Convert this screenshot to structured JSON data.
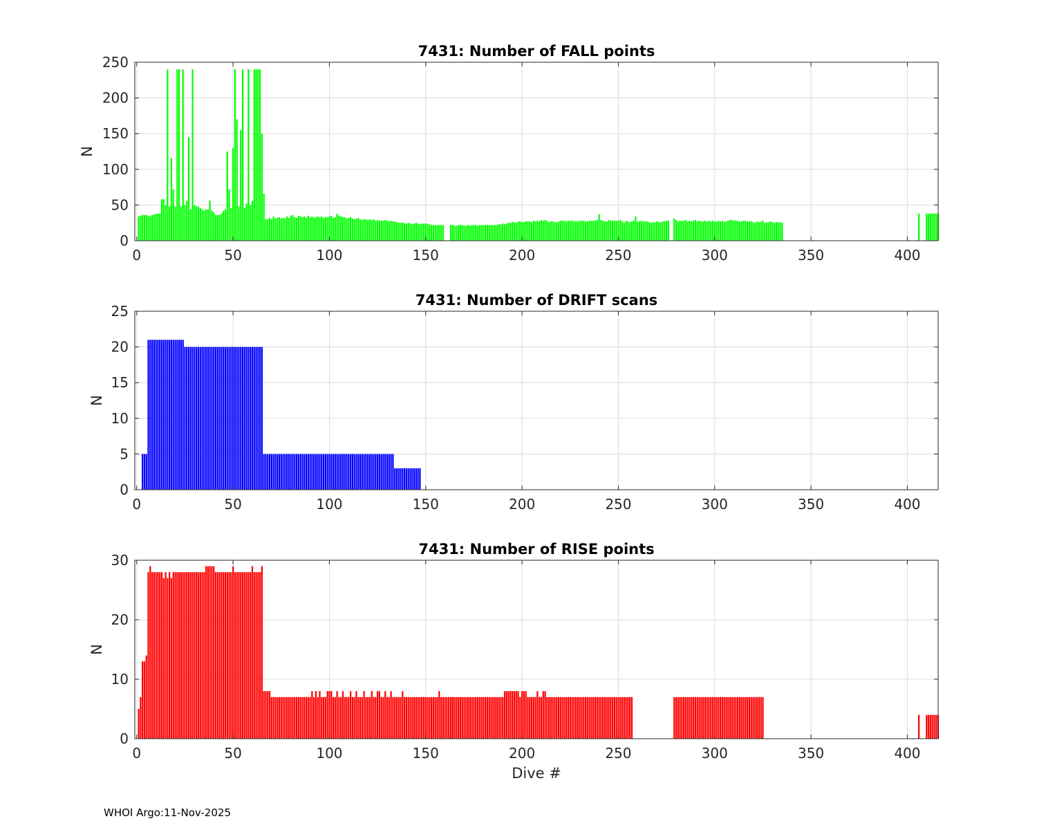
{
  "footer": "WHOI Argo:11-Nov-2025",
  "chart_data": [
    {
      "type": "bar",
      "title": "7431: Number of FALL points",
      "xlabel": "",
      "ylabel": "N",
      "xlim": [
        -1,
        416
      ],
      "ylim": [
        0,
        250
      ],
      "xticks": [
        0,
        50,
        100,
        150,
        200,
        250,
        300,
        350,
        400
      ],
      "yticks": [
        0,
        50,
        100,
        150,
        200,
        250
      ],
      "color": "#00ff00",
      "grid": true,
      "segments": [
        {
          "start": 1,
          "values": [
            34,
            35,
            36,
            36,
            36,
            35,
            34,
            36,
            37,
            38,
            38,
            38,
            58,
            58,
            50,
            240,
            48,
            116,
            72,
            48,
            240,
            240,
            48,
            240,
            50,
            56,
            145,
            44,
            240,
            50,
            48,
            48,
            46,
            44,
            42,
            44,
            44,
            56,
            42,
            40,
            36,
            36,
            36,
            38,
            42,
            44,
            125,
            72,
            46,
            130,
            240,
            170,
            48,
            155,
            240,
            46,
            52,
            240,
            50,
            56,
            240,
            240,
            240,
            240,
            150,
            66
          ]
        },
        {
          "start": 67,
          "values": [
            30,
            30,
            32,
            30,
            34,
            31,
            32,
            33,
            31,
            32,
            31,
            34,
            32,
            35,
            36,
            33,
            32,
            35,
            34,
            33,
            34,
            32,
            35,
            33,
            34,
            32,
            33,
            34,
            33,
            34,
            32,
            33,
            33,
            34,
            35,
            32,
            33,
            38,
            35,
            34,
            33,
            33,
            31,
            32,
            33,
            31,
            30,
            31,
            32,
            30,
            29,
            30,
            30,
            29,
            30,
            29,
            30,
            28,
            29,
            28,
            28,
            28,
            29,
            28,
            27,
            28,
            27,
            27,
            26,
            25,
            25,
            26,
            24,
            24,
            25,
            24,
            23,
            24,
            25,
            24,
            23,
            24,
            24,
            24,
            24,
            23,
            22,
            22,
            22,
            22,
            22,
            22,
            22
          ]
        },
        {
          "start": 163,
          "values": [
            22,
            22,
            21,
            21,
            22,
            22,
            22,
            21,
            21,
            22,
            21,
            22,
            22,
            22,
            21,
            22,
            22,
            22,
            22,
            22,
            22,
            22,
            22,
            22,
            22,
            23,
            23,
            24,
            23,
            24,
            25,
            25,
            26,
            26,
            25,
            27,
            27,
            26,
            26,
            27,
            27,
            27,
            26,
            28,
            27,
            28,
            27,
            29,
            28,
            29,
            28,
            26,
            27,
            27,
            26,
            26,
            27,
            28,
            28,
            28,
            27,
            28,
            28,
            28,
            27,
            27,
            27,
            28,
            28,
            28,
            27,
            27,
            28,
            28,
            28,
            28,
            29,
            37,
            29,
            28,
            27,
            27,
            29,
            28,
            28,
            28,
            28,
            28,
            29,
            27,
            25,
            28,
            27,
            26,
            27,
            28,
            34,
            27,
            27,
            28,
            27,
            27,
            27,
            26,
            25,
            26,
            26,
            27,
            26,
            26,
            27,
            27,
            28,
            28
          ]
        },
        {
          "start": 279,
          "values": [
            31,
            29,
            27,
            28,
            28,
            28,
            29,
            27,
            28,
            27,
            28,
            29,
            27,
            28,
            27,
            27,
            28,
            27,
            28,
            27,
            28,
            27,
            27,
            28,
            27,
            28,
            26,
            27,
            28,
            29,
            29,
            28,
            28,
            28,
            27,
            27,
            28,
            28,
            27,
            27,
            27,
            26,
            25,
            27,
            26,
            27,
            28,
            25,
            26,
            26,
            27,
            26,
            25,
            26,
            26,
            26,
            25
          ]
        },
        {
          "start": 406,
          "values": [
            38
          ]
        },
        {
          "start": 410,
          "values": [
            38,
            38,
            38,
            38,
            38,
            38,
            38
          ]
        }
      ]
    },
    {
      "type": "bar",
      "title": "7431: Number of DRIFT scans",
      "xlabel": "",
      "ylabel": "N",
      "xlim": [
        -1,
        416
      ],
      "ylim": [
        0,
        25
      ],
      "xticks": [
        0,
        50,
        100,
        150,
        200,
        250,
        300,
        350,
        400
      ],
      "yticks": [
        0,
        5,
        10,
        15,
        20,
        25
      ],
      "color": "#0000ff",
      "grid": true,
      "segments": [
        {
          "start": 3,
          "values": [
            5,
            5,
            5,
            21,
            21,
            21,
            21,
            21,
            21,
            21,
            21,
            21,
            21,
            21,
            21,
            21,
            21,
            21,
            21,
            21,
            21,
            21
          ]
        },
        {
          "start": 25,
          "values": [
            20,
            20,
            20,
            20,
            20,
            20,
            20,
            20,
            20,
            20,
            20,
            20,
            20,
            20,
            20,
            20,
            20,
            20,
            20,
            20,
            20,
            20,
            20,
            20,
            20,
            20,
            20,
            20,
            20,
            20,
            20,
            20,
            20,
            20,
            20,
            20,
            20,
            20,
            20,
            20,
            20
          ]
        },
        {
          "start": 66,
          "values": [
            5,
            5,
            5,
            5,
            5,
            5,
            5,
            5,
            5,
            5,
            5,
            5,
            5,
            5,
            5,
            5,
            5,
            5,
            5,
            5,
            5,
            5,
            5,
            5,
            5,
            5,
            5,
            5,
            5,
            5,
            5,
            5,
            5,
            5,
            5,
            5,
            5,
            5,
            5,
            5,
            5,
            5,
            5,
            5,
            5,
            5,
            5,
            5,
            5,
            5,
            5,
            5,
            5,
            5,
            5,
            5,
            5,
            5,
            5,
            5,
            5,
            5,
            5,
            5,
            5,
            5,
            5,
            5
          ]
        },
        {
          "start": 134,
          "values": [
            3,
            3,
            3,
            3,
            3,
            3,
            3,
            3,
            3,
            3,
            3,
            3,
            3,
            3
          ]
        }
      ]
    },
    {
      "type": "bar",
      "title": "7431: Number of RISE points",
      "xlabel": "Dive #",
      "ylabel": "N",
      "xlim": [
        -1,
        416
      ],
      "ylim": [
        0,
        30
      ],
      "xticks": [
        0,
        50,
        100,
        150,
        200,
        250,
        300,
        350,
        400
      ],
      "yticks": [
        0,
        10,
        20,
        30
      ],
      "color": "#ff0000",
      "grid": true,
      "segments": [
        {
          "start": 1,
          "values": [
            5,
            7,
            13,
            13,
            14,
            28,
            29,
            28,
            28,
            28,
            28,
            28,
            28,
            27,
            28,
            27,
            28,
            27,
            28,
            28,
            28,
            28,
            28,
            28,
            28,
            28,
            28,
            28,
            28,
            28,
            28,
            28,
            28,
            28,
            28,
            29,
            29,
            29,
            29,
            29,
            28,
            28,
            28,
            28,
            28,
            28,
            28,
            28,
            28,
            29,
            28,
            28,
            28,
            28,
            28,
            28,
            28,
            28,
            28,
            29,
            28,
            28,
            28,
            28,
            29
          ]
        },
        {
          "start": 66,
          "values": [
            8,
            8,
            8,
            8,
            7,
            7,
            7,
            7,
            7,
            7,
            7,
            7,
            7,
            7,
            7,
            7,
            7,
            7,
            7,
            7,
            7,
            7,
            7,
            7,
            7,
            8,
            7,
            8,
            7,
            8,
            7,
            7,
            7,
            8,
            8,
            8,
            7,
            7,
            8,
            7,
            7,
            8,
            7,
            7,
            7,
            8,
            7,
            7,
            8,
            7,
            7,
            7,
            8,
            7,
            7,
            7,
            8,
            7,
            7,
            8,
            8,
            7,
            7,
            8,
            7,
            7,
            8,
            7,
            7,
            7,
            7,
            7,
            8,
            7,
            7,
            7,
            7,
            7,
            7,
            7,
            7,
            7,
            7,
            7,
            7,
            7,
            7,
            7,
            7,
            7,
            7,
            8,
            7,
            7,
            7,
            7,
            7,
            7,
            7
          ]
        },
        {
          "start": 164,
          "values": [
            7,
            7,
            7,
            7,
            7,
            7,
            7,
            7,
            7,
            7,
            7,
            7,
            7,
            7,
            7,
            7,
            7,
            7,
            7,
            7,
            7,
            7,
            7,
            7,
            7,
            7,
            7,
            8,
            8,
            8,
            8,
            8,
            8,
            8,
            8,
            7,
            8,
            8,
            8,
            7,
            7,
            7,
            7,
            7,
            8,
            7,
            7,
            8,
            8,
            7,
            7,
            7,
            7,
            7,
            7,
            7,
            7,
            7,
            7,
            7,
            7,
            7,
            7,
            7,
            7,
            7,
            7,
            7,
            7,
            7,
            7,
            7,
            7,
            7,
            7,
            7,
            7,
            7,
            7,
            7,
            7,
            7,
            7,
            7,
            7,
            7,
            7,
            7,
            7,
            7,
            7,
            7,
            7,
            7
          ]
        },
        {
          "start": 279,
          "values": [
            7,
            7,
            7,
            7,
            7,
            7,
            7,
            7,
            7,
            7,
            7,
            7,
            7,
            7,
            7,
            7,
            7,
            7,
            7,
            7,
            7,
            7,
            7,
            7,
            7,
            7,
            7,
            7,
            7,
            7,
            7,
            7,
            7,
            7,
            7,
            7,
            7,
            7,
            7,
            7,
            7,
            7,
            7,
            7,
            7,
            7,
            7
          ]
        },
        {
          "start": 406,
          "values": [
            4
          ]
        },
        {
          "start": 410,
          "values": [
            4,
            4,
            4,
            4,
            4,
            4,
            4
          ]
        }
      ]
    }
  ]
}
